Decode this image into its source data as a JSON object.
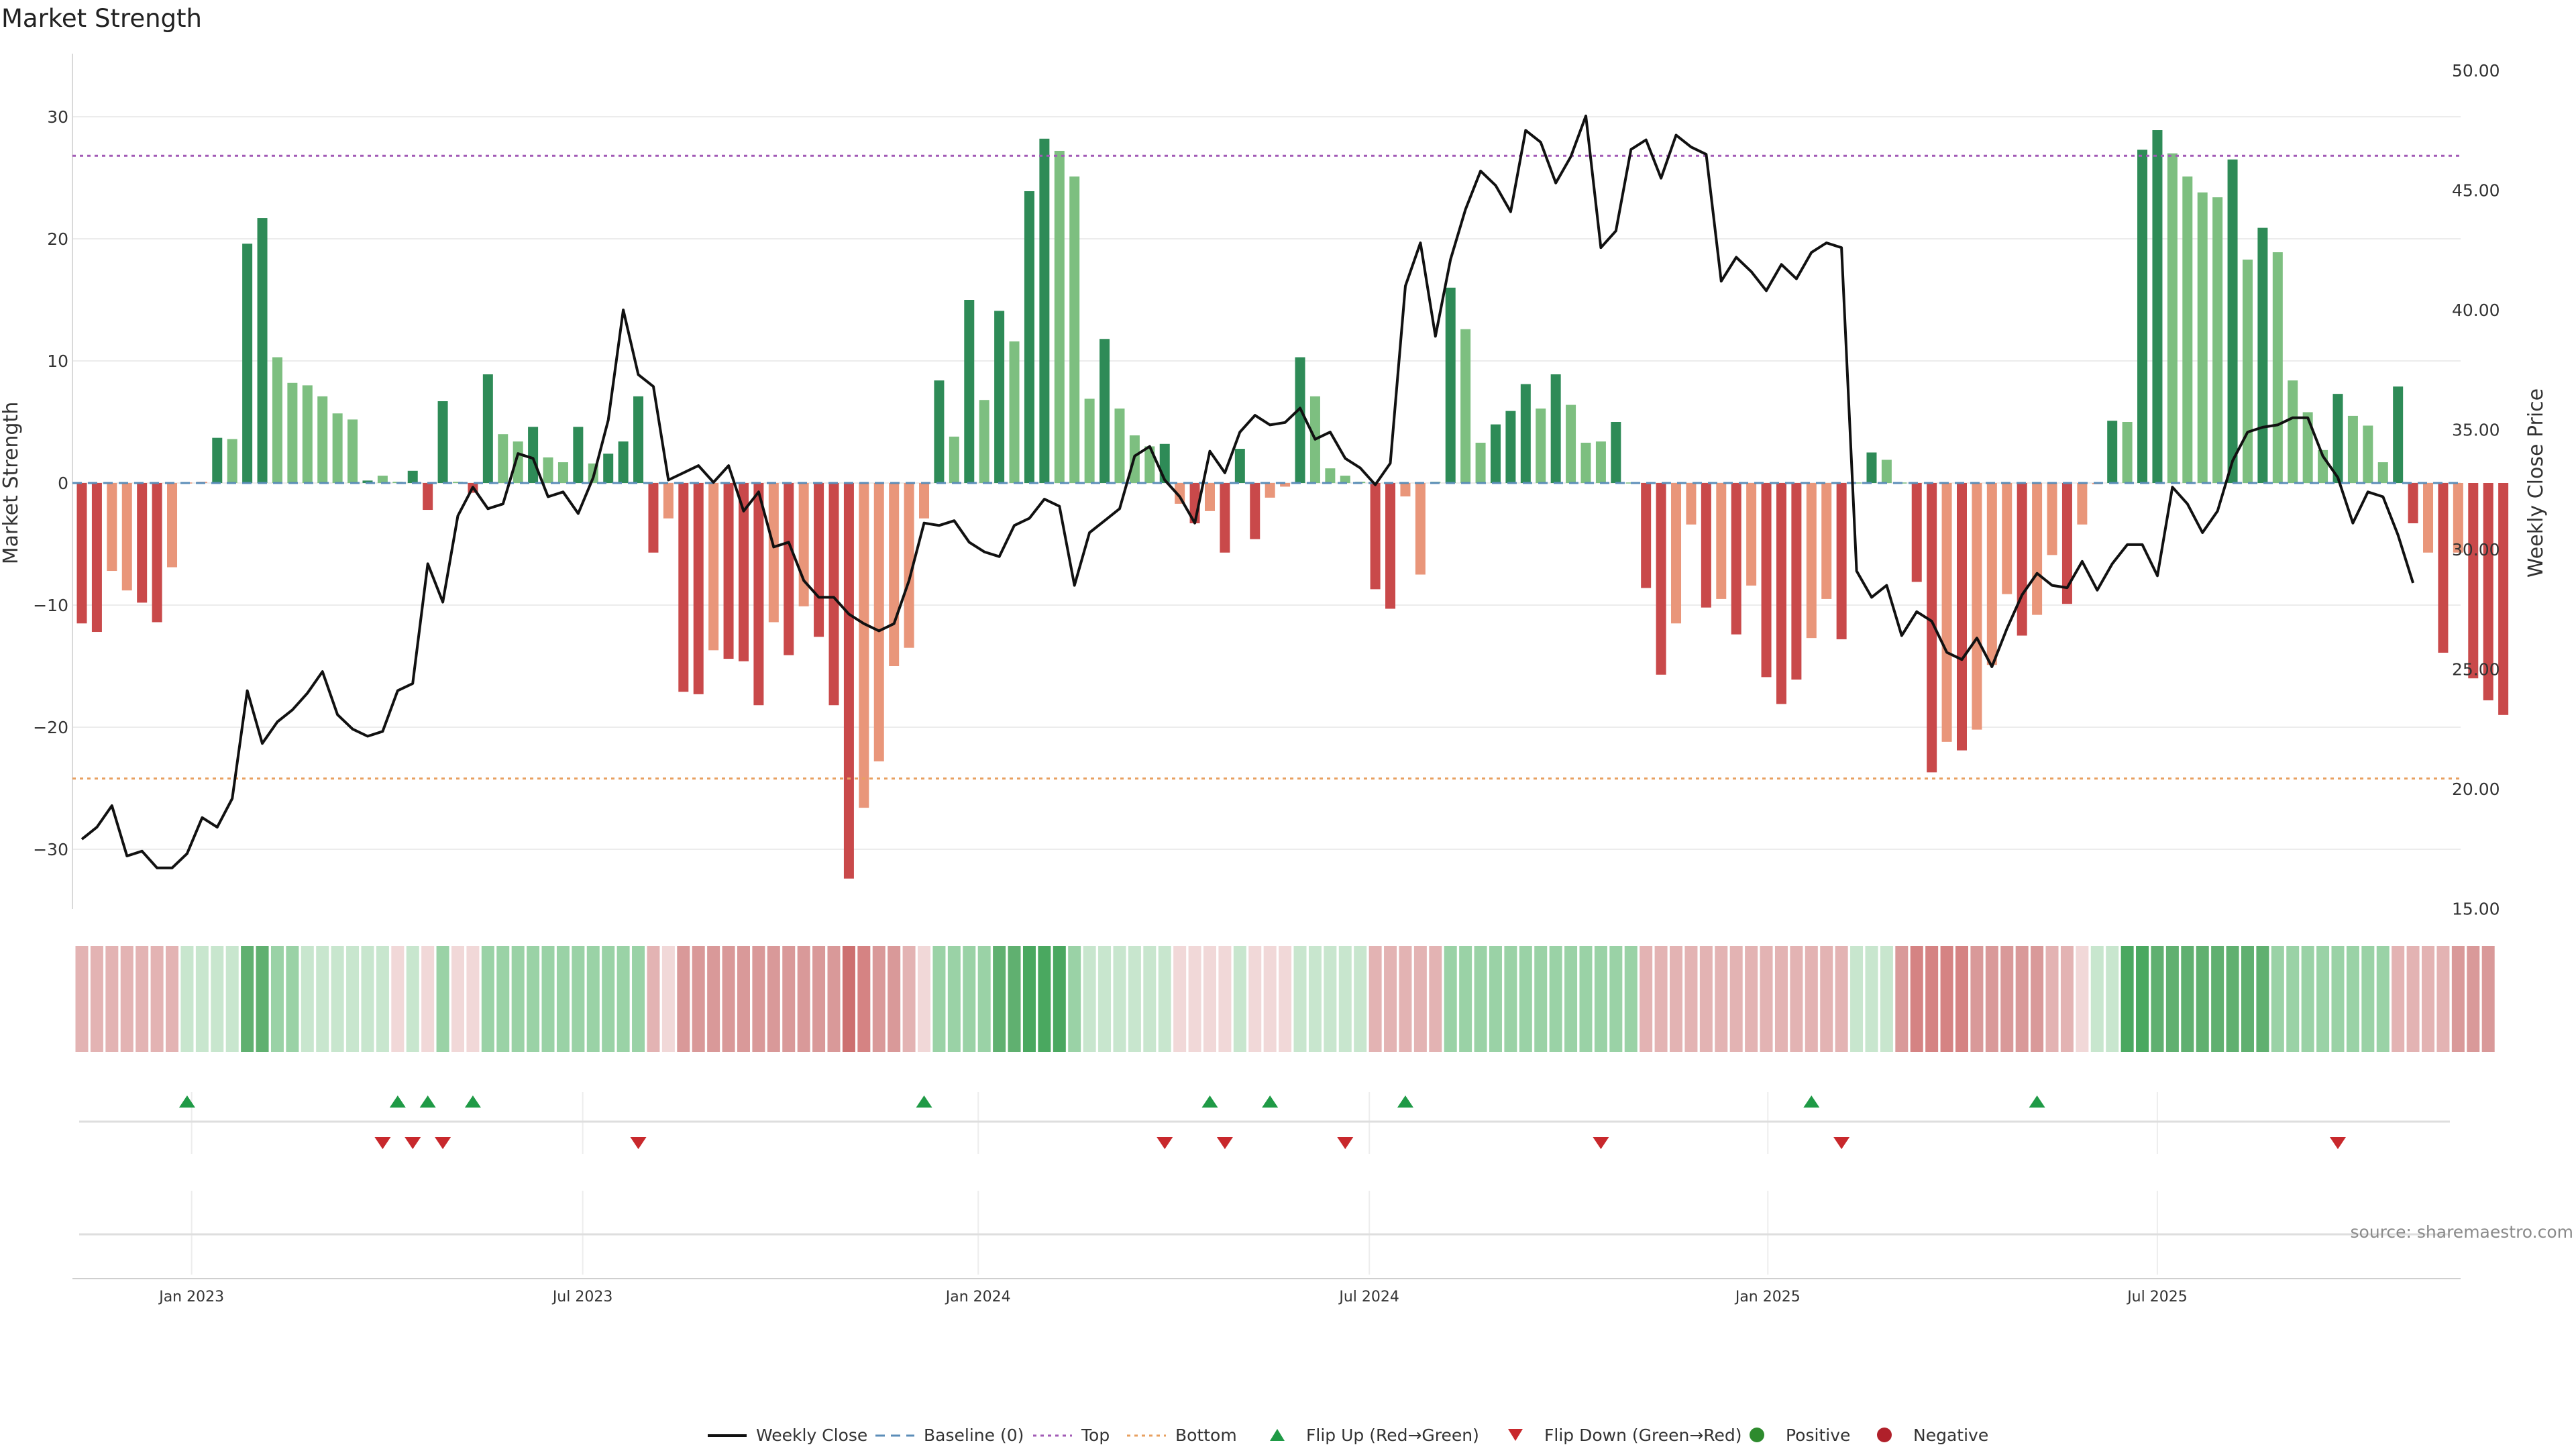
{
  "chart_data": {
    "type": "bar",
    "title": "Market Strength",
    "ylabel_left": "Market Strength",
    "ylabel_right": "Weekly Close Price",
    "ylim_left": [
      -35,
      35
    ],
    "ylim_right": [
      15,
      50
    ],
    "yticks_left": [
      "30",
      "20",
      "10",
      "0",
      "−10",
      "−20",
      "−30"
    ],
    "yticks_right": [
      "50.00",
      "45.00",
      "40.00",
      "35.00",
      "30.00",
      "25.00",
      "20.00",
      "15.00"
    ],
    "x_tick_labels": [
      "Jan 2023",
      "Jul 2023",
      "Jan 2024",
      "Jul 2024",
      "Jan 2025",
      "Jul 2025"
    ],
    "x_tick_positions_week": [
      7.3,
      33.3,
      59.6,
      85.6,
      112.1,
      138.0
    ],
    "top_level": 26.8,
    "bottom_level": -24.2,
    "baseline": 0,
    "series": [
      {
        "name": "Market Strength",
        "values": [
          -11.5,
          -12.2,
          -7.2,
          -8.8,
          -9.8,
          -11.4,
          -6.9,
          0,
          0.1,
          3.7,
          3.6,
          19.6,
          21.7,
          10.3,
          8.2,
          8.0,
          7.1,
          5.7,
          5.2,
          0.2,
          0.6,
          0.1,
          1.0,
          -2.2,
          6.7,
          0.1,
          -0.8,
          8.9,
          4.0,
          3.4,
          4.6,
          2.1,
          1.7,
          4.6,
          1.6,
          2.4,
          3.4,
          7.1,
          -5.7,
          -2.9,
          -17.1,
          -17.3,
          -13.7,
          -14.4,
          -14.6,
          -18.2,
          -11.4,
          -14.1,
          -10.1,
          -12.6,
          -18.2,
          -32.4,
          -26.6,
          -22.8,
          -15.0,
          -13.5,
          -2.9,
          8.4,
          3.8,
          15.0,
          6.8,
          14.1,
          11.6,
          23.9,
          28.2,
          27.2,
          25.1,
          6.9,
          11.8,
          6.1,
          3.9,
          3.0,
          3.2,
          -1.7,
          -3.3,
          -2.3,
          -5.7,
          2.8,
          -4.6,
          -1.2,
          -0.3,
          10.3,
          7.1,
          1.2,
          0.6,
          0.1,
          -8.7,
          -10.3,
          -1.1,
          -7.5,
          0.1,
          16.0,
          12.6,
          3.3,
          4.8,
          5.9,
          8.1,
          6.1,
          8.9,
          6.4,
          3.3,
          3.4,
          5.0,
          0,
          -8.6,
          -15.7,
          -11.5,
          -3.4,
          -10.2,
          -9.5,
          -12.4,
          -8.4,
          -15.9,
          -18.1,
          -16.1,
          -12.7,
          -9.5,
          -12.8,
          0,
          2.5,
          1.9,
          0,
          -8.1,
          -23.7,
          -21.2,
          -21.9,
          -20.2,
          -14.9,
          -9.1,
          -12.5,
          -10.8,
          -5.9,
          -9.9,
          -3.4,
          -0.1,
          5.1,
          5.0,
          27.3,
          28.9,
          27.0,
          25.1,
          23.8,
          23.4,
          26.5,
          18.3,
          20.9,
          18.9,
          8.4,
          5.8,
          2.7,
          7.3,
          5.5,
          4.7,
          1.7,
          7.9,
          -3.3,
          -5.7,
          -13.9,
          -5.7,
          -16.0,
          -17.8,
          -19.0
        ],
        "colors": [
          "#c9494a",
          "#c9494a",
          "#e9967a",
          "#e9967a",
          "#c9494a",
          "#c9494a",
          "#e9967a",
          "#e9967a",
          "#e9967a",
          "#2e8b57",
          "#7dbf80",
          "#2e8b57",
          "#2e8b57",
          "#7dbf80",
          "#7dbf80",
          "#7dbf80",
          "#7dbf80",
          "#7dbf80",
          "#7dbf80",
          "#2e8b57",
          "#7dbf80",
          "#7dbf80",
          "#2e8b57",
          "#c9494a",
          "#2e8b57",
          "#7dbf80",
          "#c9494a",
          "#2e8b57",
          "#7dbf80",
          "#7dbf80",
          "#2e8b57",
          "#7dbf80",
          "#7dbf80",
          "#2e8b57",
          "#7dbf80",
          "#2e8b57",
          "#2e8b57",
          "#2e8b57",
          "#c9494a",
          "#e9967a",
          "#c9494a",
          "#c9494a",
          "#e9967a",
          "#c9494a",
          "#c9494a",
          "#c9494a",
          "#e9967a",
          "#c9494a",
          "#e9967a",
          "#c9494a",
          "#c9494a",
          "#c9494a",
          "#e9967a",
          "#e9967a",
          "#e9967a",
          "#e9967a",
          "#e9967a",
          "#2e8b57",
          "#7dbf80",
          "#2e8b57",
          "#7dbf80",
          "#2e8b57",
          "#7dbf80",
          "#2e8b57",
          "#2e8b57",
          "#7dbf80",
          "#7dbf80",
          "#7dbf80",
          "#2e8b57",
          "#7dbf80",
          "#7dbf80",
          "#7dbf80",
          "#2e8b57",
          "#e9967a",
          "#c9494a",
          "#e9967a",
          "#c9494a",
          "#2e8b57",
          "#c9494a",
          "#e9967a",
          "#e9967a",
          "#2e8b57",
          "#7dbf80",
          "#7dbf80",
          "#7dbf80",
          "#7dbf80",
          "#c9494a",
          "#c9494a",
          "#e9967a",
          "#e9967a",
          "#7dbf80",
          "#2e8b57",
          "#7dbf80",
          "#7dbf80",
          "#2e8b57",
          "#2e8b57",
          "#2e8b57",
          "#7dbf80",
          "#2e8b57",
          "#7dbf80",
          "#7dbf80",
          "#7dbf80",
          "#2e8b57",
          "#7dbf80",
          "#c9494a",
          "#c9494a",
          "#e9967a",
          "#e9967a",
          "#c9494a",
          "#e9967a",
          "#c9494a",
          "#e9967a",
          "#c9494a",
          "#c9494a",
          "#c9494a",
          "#e9967a",
          "#e9967a",
          "#c9494a",
          "#7dbf80",
          "#2e8b57",
          "#7dbf80",
          "#7dbf80",
          "#c9494a",
          "#c9494a",
          "#e9967a",
          "#c9494a",
          "#e9967a",
          "#e9967a",
          "#e9967a",
          "#c9494a",
          "#e9967a",
          "#e9967a",
          "#c9494a",
          "#e9967a",
          "#e9967a",
          "#2e8b57",
          "#7dbf80",
          "#2e8b57",
          "#2e8b57",
          "#7dbf80",
          "#7dbf80",
          "#7dbf80",
          "#7dbf80",
          "#2e8b57",
          "#7dbf80",
          "#2e8b57",
          "#7dbf80",
          "#7dbf80",
          "#7dbf80",
          "#7dbf80",
          "#2e8b57",
          "#7dbf80",
          "#7dbf80",
          "#7dbf80",
          "#2e8b57",
          "#c9494a",
          "#e9967a",
          "#c9494a",
          "#e9967a",
          "#c9494a",
          "#c9494a",
          "#c9494a"
        ]
      },
      {
        "name": "Weekly Close",
        "values": [
          17.9,
          18.4,
          19.3,
          17.2,
          17.4,
          16.7,
          16.7,
          17.3,
          18.8,
          18.4,
          19.6,
          24.1,
          21.9,
          22.8,
          23.3,
          24.0,
          24.9,
          23.1,
          22.5,
          22.2,
          22.4,
          24.1,
          24.4,
          29.4,
          27.8,
          31.4,
          32.6,
          31.7,
          31.9,
          34.0,
          33.8,
          32.2,
          32.4,
          31.5,
          33.0,
          35.4,
          40.0,
          37.3,
          36.8,
          32.9,
          33.2,
          33.5,
          32.8,
          33.5,
          31.6,
          32.4,
          30.1,
          30.3,
          28.7,
          28.0,
          28.0,
          27.3,
          26.9,
          26.6,
          26.9,
          28.7,
          31.1,
          31.0,
          31.2,
          30.3,
          29.9,
          29.7,
          31.0,
          31.3,
          32.1,
          31.8,
          28.5,
          30.7,
          31.2,
          31.7,
          33.9,
          34.3,
          32.9,
          32.2,
          31.1,
          34.1,
          33.2,
          34.9,
          35.6,
          35.2,
          35.3,
          35.9,
          34.6,
          34.9,
          33.8,
          33.4,
          32.7,
          33.6,
          41.0,
          42.8,
          38.9,
          42.1,
          44.2,
          45.8,
          45.2,
          44.1,
          47.5,
          47.0,
          45.3,
          46.4,
          48.1,
          42.6,
          43.3,
          46.7,
          47.1,
          45.5,
          47.3,
          46.8,
          46.5,
          41.2,
          42.2,
          41.6,
          40.8,
          41.9,
          41.3,
          42.4,
          42.8,
          42.6,
          29.1,
          28.0,
          28.5,
          26.4,
          27.4,
          27.0,
          25.7,
          25.4,
          26.3,
          25.1,
          26.7,
          28.1,
          29.0,
          28.5,
          28.4,
          29.5,
          28.3,
          29.4,
          30.2,
          30.2,
          28.9,
          32.6,
          31.9,
          30.7,
          31.6,
          33.7,
          34.9,
          35.1,
          35.2,
          35.5,
          35.5,
          33.9,
          33.0,
          31.1,
          32.4,
          32.2,
          30.6,
          28.6
        ]
      }
    ],
    "heat_strip_colors": [
      "#e3b3b3",
      "#e3b3b3",
      "#e3b3b3",
      "#e3b3b3",
      "#e3b3b3",
      "#e3b3b3",
      "#e3b3b3",
      "#c8e6ce",
      "#c8e6ce",
      "#c8e6ce",
      "#c8e6ce",
      "#60b070",
      "#60b070",
      "#9ad2a6",
      "#9ad2a6",
      "#c8e6ce",
      "#c8e6ce",
      "#c8e6ce",
      "#c8e6ce",
      "#c8e6ce",
      "#c8e6ce",
      "#f1d8d8",
      "#c8e6ce",
      "#f1d8d8",
      "#9ad2a6",
      "#f1d8d8",
      "#f1d8d8",
      "#9ad2a6",
      "#9ad2a6",
      "#9ad2a6",
      "#9ad2a6",
      "#9ad2a6",
      "#9ad2a6",
      "#9ad2a6",
      "#9ad2a6",
      "#9ad2a6",
      "#9ad2a6",
      "#9ad2a6",
      "#e3b3b3",
      "#f1d8d8",
      "#d99999",
      "#d99999",
      "#d99999",
      "#d99999",
      "#d99999",
      "#d99999",
      "#d99999",
      "#d99999",
      "#d99999",
      "#d99999",
      "#d99999",
      "#cd7070",
      "#d58383",
      "#d99999",
      "#d99999",
      "#e3b3b3",
      "#f1d8d8",
      "#9ad2a6",
      "#9ad2a6",
      "#9ad2a6",
      "#9ad2a6",
      "#60b070",
      "#60b070",
      "#4aa860",
      "#4aa860",
      "#4aa860",
      "#9ad2a6",
      "#c8e6ce",
      "#c8e6ce",
      "#c8e6ce",
      "#c8e6ce",
      "#c8e6ce",
      "#c8e6ce",
      "#f1d8d8",
      "#f1d8d8",
      "#f1d8d8",
      "#f1d8d8",
      "#c8e6ce",
      "#f1d8d8",
      "#f1d8d8",
      "#f1d8d8",
      "#c8e6ce",
      "#c8e6ce",
      "#c8e6ce",
      "#c8e6ce",
      "#c8e6ce",
      "#e3b3b3",
      "#e3b3b3",
      "#e3b3b3",
      "#e3b3b3",
      "#e3b3b3",
      "#9ad2a6",
      "#9ad2a6",
      "#9ad2a6",
      "#9ad2a6",
      "#9ad2a6",
      "#9ad2a6",
      "#9ad2a6",
      "#9ad2a6",
      "#9ad2a6",
      "#9ad2a6",
      "#9ad2a6",
      "#9ad2a6",
      "#9ad2a6",
      "#e3b3b3",
      "#e3b3b3",
      "#e3b3b3",
      "#e3b3b3",
      "#e3b3b3",
      "#e3b3b3",
      "#e3b3b3",
      "#e3b3b3",
      "#e3b3b3",
      "#e3b3b3",
      "#e3b3b3",
      "#e3b3b3",
      "#e3b3b3",
      "#e3b3b3",
      "#c8e6ce",
      "#c8e6ce",
      "#c8e6ce",
      "#d99999",
      "#d58383",
      "#d58383",
      "#d58383",
      "#d58383",
      "#d99999",
      "#d99999",
      "#d99999",
      "#d99999",
      "#d99999",
      "#e3b3b3",
      "#e3b3b3",
      "#f1d8d8",
      "#c8e6ce",
      "#c8e6ce",
      "#4aa860",
      "#4aa860",
      "#60b070",
      "#60b070",
      "#60b070",
      "#60b070",
      "#60b070",
      "#60b070",
      "#60b070",
      "#60b070",
      "#9ad2a6",
      "#9ad2a6",
      "#9ad2a6",
      "#9ad2a6",
      "#9ad2a6",
      "#9ad2a6",
      "#9ad2a6",
      "#9ad2a6",
      "#e3b3b3",
      "#e3b3b3",
      "#e3b3b3",
      "#e3b3b3",
      "#d99999",
      "#d99999",
      "#d99999"
    ],
    "flip_up_weeks": [
      7,
      21,
      23,
      26,
      56,
      75,
      79,
      88,
      115,
      130
    ],
    "flip_down_weeks": [
      20,
      22,
      24,
      37,
      72,
      76,
      84,
      101,
      117,
      150
    ],
    "legend": [
      "Weekly Close",
      "Baseline (0)",
      "Top",
      "Bottom",
      "Flip Up (Red→Green)",
      "Flip Down (Green→Red)",
      "Positive",
      "Negative"
    ],
    "colors": {
      "positive_strong": "#2e8b57",
      "positive_weak": "#7dbf80",
      "negative_strong": "#c9494a",
      "negative_weak": "#e9967a",
      "line": "#111111",
      "baseline": "#5b8db8",
      "top": "#a25ab6",
      "bottom": "#e8a060",
      "flip_up": "#1f9a46",
      "flip_down": "#c8282c",
      "positive_dot": "#2e8b2e",
      "negative_dot": "#b0202a"
    },
    "source": "source: sharemaestro.com"
  }
}
